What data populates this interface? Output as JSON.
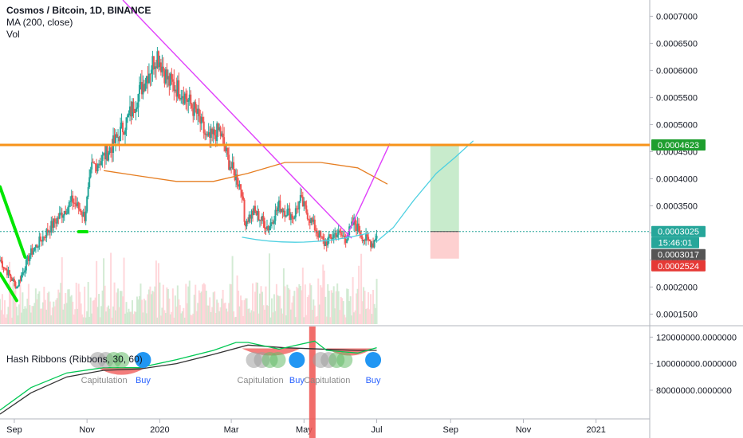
{
  "header": {
    "title": "Cosmos / Bitcoin, 1D, BINANCE",
    "ma_label": "MA (200, close)",
    "vol_label": "Vol",
    "indicator_label": "Hash Ribbons (Ribbons, 30, 60)"
  },
  "colors": {
    "resistance": "#f7931a",
    "ma": "#e67e22",
    "trend": "#e040fb",
    "projection": "#4dd0e1",
    "support": "#00e600",
    "up_candle": "#26a69a",
    "down_candle": "#ef5350",
    "profit_zone": "#c8ebcc",
    "loss_zone": "#fdd0d0",
    "capitulation_bar": "#ef5350",
    "hash_fast": "#00c853",
    "hash_slow": "#333333"
  },
  "price_tags": [
    {
      "label": "0.0004623",
      "bg": "#1e9e2e",
      "fg": "#ffffff"
    },
    {
      "label": "0.0003025",
      "bg": "#26a69a",
      "fg": "#ffffff"
    },
    {
      "label": "15:46:01",
      "bg": "#26a69a",
      "fg": "#ffffff"
    },
    {
      "label": "0.0003017",
      "bg": "#555555",
      "fg": "#ffffff"
    },
    {
      "label": "0.0002524",
      "bg": "#e53935",
      "fg": "#ffffff"
    }
  ],
  "chart_data": {
    "type": "candlestick",
    "title": "Cosmos / Bitcoin, 1D, BINANCE",
    "y_ticks": [
      "0.0007000",
      "0.0006500",
      "0.0006000",
      "0.0005500",
      "0.0005000",
      "0.0004500",
      "0.0004000",
      "0.0003500",
      "0.0003000",
      "0.0002500",
      "0.0002000",
      "0.0001500"
    ],
    "ylim": [
      0.00013,
      0.00073
    ],
    "x_ticks": [
      "Sep",
      "Nov",
      "2020",
      "Mar",
      "May",
      "Jul",
      "Sep",
      "Nov",
      "2021"
    ],
    "xlim": [
      "2019-08-20",
      "2021-02-15"
    ],
    "price_path": [
      [
        "2019-08-20",
        0.00025
      ],
      [
        "2019-09-03",
        0.0002
      ],
      [
        "2019-09-14",
        0.00026
      ],
      [
        "2019-10-01",
        0.00031
      ],
      [
        "2019-10-20",
        0.00036
      ],
      [
        "2019-10-30",
        0.00033
      ],
      [
        "2019-11-05",
        0.00042
      ],
      [
        "2019-11-15",
        0.00044
      ],
      [
        "2019-11-25",
        0.00047
      ],
      [
        "2019-12-05",
        0.00051
      ],
      [
        "2019-12-15",
        0.00056
      ],
      [
        "2019-12-25",
        0.00061
      ],
      [
        "2019-12-30",
        0.00063
      ],
      [
        "2020-01-08",
        0.00058
      ],
      [
        "2020-01-20",
        0.00056
      ],
      [
        "2020-02-01",
        0.00052
      ],
      [
        "2020-02-10",
        0.00047
      ],
      [
        "2020-02-20",
        0.00049
      ],
      [
        "2020-02-28",
        0.00043
      ],
      [
        "2020-03-10",
        0.00038
      ],
      [
        "2020-03-12",
        0.00032
      ],
      [
        "2020-03-20",
        0.00034
      ],
      [
        "2020-04-01",
        0.00031
      ],
      [
        "2020-04-10",
        0.00035
      ],
      [
        "2020-04-22",
        0.00033
      ],
      [
        "2020-04-28",
        0.00036
      ],
      [
        "2020-05-10",
        0.00031
      ],
      [
        "2020-05-18",
        0.00028
      ],
      [
        "2020-05-28",
        0.0003
      ],
      [
        "2020-06-05",
        0.00029
      ],
      [
        "2020-06-12",
        0.00032
      ],
      [
        "2020-06-20",
        0.00029
      ],
      [
        "2020-06-28",
        0.00028
      ],
      [
        "2020-07-01",
        0.0003
      ]
    ],
    "ma200": [
      [
        "2019-11-15",
        0.000415
      ],
      [
        "2019-12-15",
        0.000405
      ],
      [
        "2020-01-15",
        0.000395
      ],
      [
        "2020-02-15",
        0.000395
      ],
      [
        "2020-03-15",
        0.00041
      ],
      [
        "2020-04-15",
        0.00043
      ],
      [
        "2020-05-15",
        0.00043
      ],
      [
        "2020-06-15",
        0.00042
      ],
      [
        "2020-07-10",
        0.00039
      ]
    ],
    "horizontal_levels": [
      {
        "price": 0.0004623,
        "label": "0.0004623"
      },
      {
        "price": 0.0003025,
        "label": "0.0003025"
      }
    ],
    "trendlines": [
      {
        "from": [
          "2019-12-01",
          0.00073
        ],
        "to": [
          "2020-06-10",
          0.00029
        ]
      },
      {
        "from": [
          "2020-06-05",
          0.00029
        ],
        "to": [
          "2020-07-12",
          0.000465
        ]
      }
    ],
    "projection": [
      [
        "2020-07-01",
        0.000284
      ],
      [
        "2020-07-15",
        0.00031
      ],
      [
        "2020-08-01",
        0.00036
      ],
      [
        "2020-08-20",
        0.00041
      ],
      [
        "2020-09-05",
        0.00044
      ],
      [
        "2020-09-20",
        0.00047
      ]
    ],
    "position_box": {
      "start": "2020-08-15",
      "end": "2020-09-08",
      "entry": 0.0003025,
      "target": 0.0004623,
      "stop": 0.0002524
    },
    "support_drawings": [
      {
        "from": [
          "2019-08-20",
          0.000385
        ],
        "to": [
          "2019-09-10",
          0.000255
        ]
      },
      {
        "from": [
          "2019-08-20",
          0.000225
        ],
        "to": [
          "2019-09-03",
          0.000175
        ]
      },
      {
        "from": [
          "2019-10-25",
          0.000302
        ],
        "to": [
          "2019-11-01",
          0.000302
        ]
      }
    ],
    "hash_ribbons": {
      "y_ticks": [
        "120000000.0000000",
        "100000000.0000000",
        "80000000.0000000"
      ],
      "ylim": [
        62000000,
        125000000
      ],
      "fast": [
        [
          "2019-08-20",
          65000000
        ],
        [
          "2019-09-15",
          82000000
        ],
        [
          "2019-10-15",
          93000000
        ],
        [
          "2019-11-15",
          97000000
        ],
        [
          "2019-12-15",
          97000000
        ],
        [
          "2020-01-15",
          103000000
        ],
        [
          "2020-02-15",
          110000000
        ],
        [
          "2020-03-05",
          116000000
        ],
        [
          "2020-03-15",
          116000000
        ],
        [
          "2020-04-10",
          111000000
        ],
        [
          "2020-05-10",
          117000000
        ],
        [
          "2020-05-20",
          110000000
        ],
        [
          "2020-06-15",
          108000000
        ],
        [
          "2020-07-01",
          112000000
        ]
      ],
      "slow": [
        [
          "2019-08-20",
          62000000
        ],
        [
          "2019-09-15",
          78000000
        ],
        [
          "2019-10-15",
          90000000
        ],
        [
          "2019-11-15",
          95000000
        ],
        [
          "2019-12-15",
          96000000
        ],
        [
          "2020-01-15",
          100000000
        ],
        [
          "2020-02-15",
          107000000
        ],
        [
          "2020-03-15",
          114000000
        ],
        [
          "2020-04-15",
          112000000
        ],
        [
          "2020-05-15",
          111000000
        ],
        [
          "2020-06-15",
          110000000
        ],
        [
          "2020-07-01",
          110000000
        ]
      ],
      "signals": [
        {
          "type": "Capitulation",
          "date": "2019-11-10"
        },
        {
          "type": "Buy",
          "date": "2019-12-18"
        },
        {
          "type": "Capitulation",
          "date": "2020-03-20"
        },
        {
          "type": "Buy",
          "date": "2020-04-25"
        },
        {
          "type": "Capitulation",
          "date": "2020-05-15"
        },
        {
          "type": "Buy",
          "date": "2020-06-28"
        }
      ],
      "capitulation_bar": "2020-05-08"
    }
  }
}
